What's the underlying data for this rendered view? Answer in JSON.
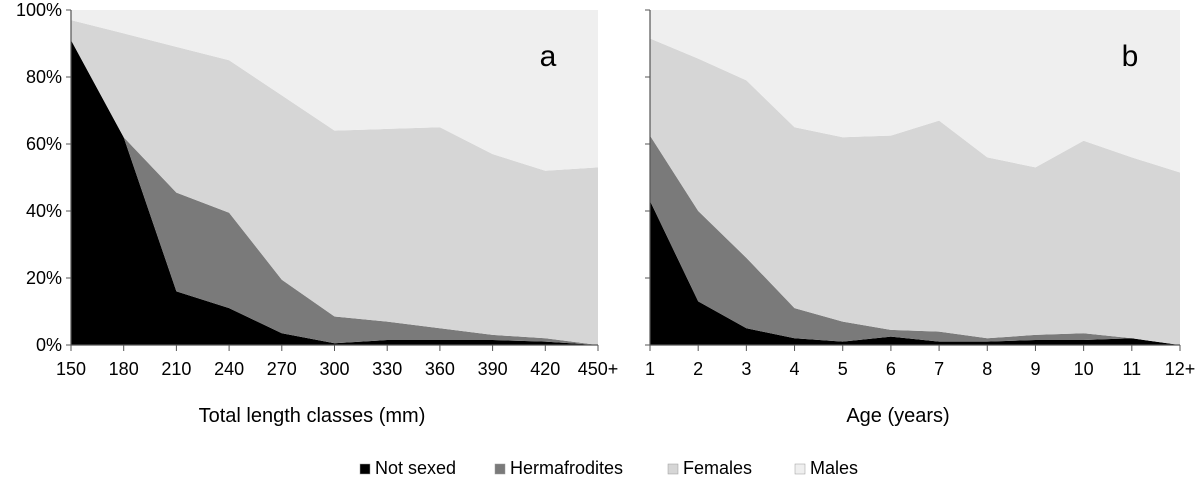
{
  "legend": [
    {
      "name": "Not sexed",
      "color": "#000000"
    },
    {
      "name": "Hermafrodites",
      "color": "#7a7a7a"
    },
    {
      "name": "Females",
      "color": "#d6d6d6"
    },
    {
      "name": "Males",
      "color": "#efefef"
    }
  ],
  "chart_data": [
    {
      "type": "area",
      "stacked_percent": true,
      "panel_label": "a",
      "xlabel": "Total length classes (mm)",
      "ylabel": "",
      "ylim": [
        0,
        100
      ],
      "y_ticks": [
        "0%",
        "20%",
        "40%",
        "60%",
        "80%",
        "100%"
      ],
      "categories": [
        "150",
        "180",
        "210",
        "240",
        "270",
        "300",
        "330",
        "360",
        "390",
        "420",
        "450+"
      ],
      "series": [
        {
          "name": "Not sexed",
          "values": [
            91,
            62,
            16,
            11,
            3.5,
            0.5,
            1.5,
            1.5,
            1.5,
            1,
            0
          ]
        },
        {
          "name": "Hermafrodites",
          "values": [
            0,
            0,
            29.5,
            28.5,
            16,
            8,
            5.5,
            3.5,
            1.5,
            1,
            0
          ]
        },
        {
          "name": "Females",
          "values": [
            6,
            31,
            43.5,
            45.5,
            55,
            55.5,
            57.5,
            60,
            54,
            50,
            53
          ]
        },
        {
          "name": "Males",
          "values": [
            3,
            7,
            11,
            15,
            25.5,
            36,
            35.5,
            35,
            43,
            48,
            47
          ]
        }
      ],
      "grid": false,
      "legend_position": "bottom"
    },
    {
      "type": "area",
      "stacked_percent": true,
      "panel_label": "b",
      "xlabel": "Age (years)",
      "ylabel": "",
      "ylim": [
        0,
        100
      ],
      "categories": [
        "1",
        "2",
        "3",
        "4",
        "5",
        "6",
        "7",
        "8",
        "9",
        "10",
        "11",
        "12+"
      ],
      "series": [
        {
          "name": "Not sexed",
          "values": [
            43,
            13,
            5,
            2,
            1,
            2.5,
            1,
            1,
            1.5,
            1.5,
            2,
            0
          ]
        },
        {
          "name": "Hermafrodites",
          "values": [
            19.5,
            27,
            21,
            9,
            6,
            2,
            3,
            1,
            1.5,
            2,
            0,
            0
          ]
        },
        {
          "name": "Females",
          "values": [
            29,
            45.5,
            53,
            54,
            55,
            58,
            63,
            54,
            50,
            57.5,
            54,
            51.5
          ]
        },
        {
          "name": "Males",
          "values": [
            8.5,
            14.5,
            21,
            35,
            38,
            37.5,
            33,
            44,
            47,
            39,
            44,
            48.5
          ]
        }
      ],
      "grid": false,
      "legend_position": "bottom"
    }
  ]
}
